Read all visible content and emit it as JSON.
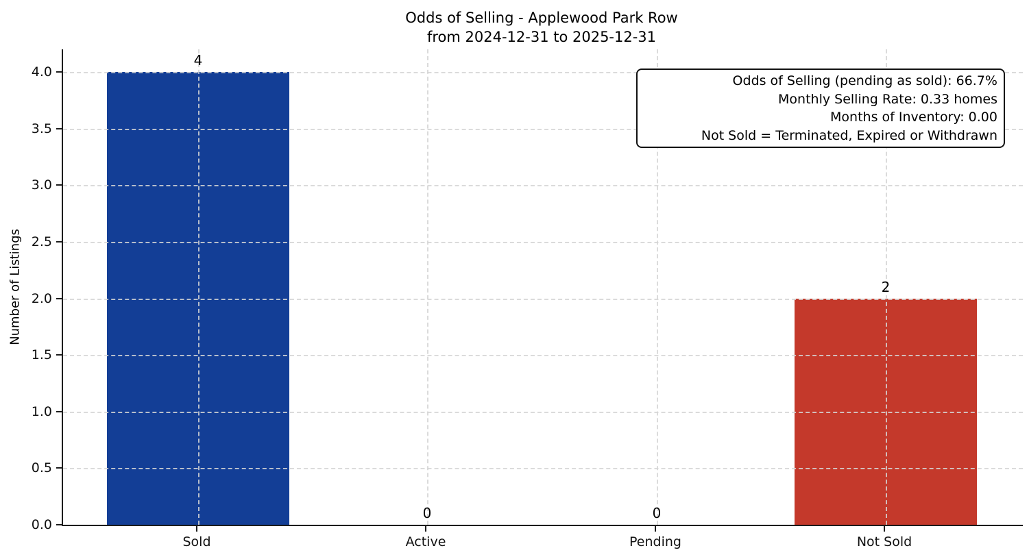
{
  "chart_data": {
    "type": "bar",
    "title_lines": [
      "Odds of Selling - Applewood Park Row",
      "from 2024-12-31 to 2025-12-31"
    ],
    "categories": [
      "Sold",
      "Active",
      "Pending",
      "Not Sold"
    ],
    "values": [
      4,
      0,
      0,
      2
    ],
    "bar_value_labels": [
      "4",
      "0",
      "0",
      "2"
    ],
    "bar_colors": [
      "#133e96",
      null,
      null,
      "#c4392b"
    ],
    "xlabel": "",
    "ylabel": "Number of Listings",
    "ytick_labels": [
      "0.0",
      "0.5",
      "1.0",
      "1.5",
      "2.0",
      "2.5",
      "3.0",
      "3.5",
      "4.0"
    ],
    "ytick_values": [
      0,
      0.5,
      1,
      1.5,
      2,
      2.5,
      3,
      3.5,
      4
    ],
    "ylim": [
      0,
      4.2
    ],
    "grid": "dashed, horizontal at each y tick and vertical at each category center, drawn above bars",
    "legend": "none",
    "annotation_box": {
      "position": "top-right",
      "lines": [
        "Odds of Selling (pending as sold): 66.7%",
        "Monthly Selling Rate: 0.33 homes",
        "Months of Inventory: 0.00",
        "Not Sold = Terminated, Expired or Withdrawn"
      ]
    }
  }
}
